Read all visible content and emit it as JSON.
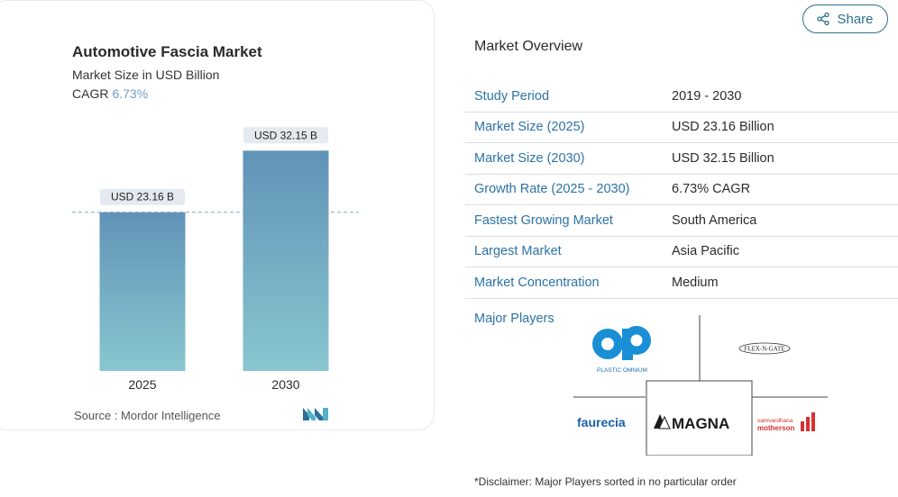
{
  "chart_data": {
    "type": "bar",
    "title": "Automotive Fascia Market",
    "subtitle": "Market Size in USD Billion",
    "cagr_label": "CAGR",
    "cagr_value": "6.73%",
    "categories": [
      "2025",
      "2030"
    ],
    "values": [
      23.16,
      32.15
    ],
    "data_labels": [
      "USD 23.16 B",
      "USD 32.15 B"
    ],
    "ylim": [
      0,
      36
    ],
    "source": "Source :  Mordor Intelligence"
  },
  "share": {
    "label": "Share",
    "icon": "share-icon"
  },
  "overview": {
    "title": "Market Overview",
    "rows": [
      {
        "key": "Study Period",
        "value": "2019 - 2030"
      },
      {
        "key": "Market Size (2025)",
        "value": "USD 23.16 Billion"
      },
      {
        "key": "Market Size (2030)",
        "value": "USD 32.15 Billion"
      },
      {
        "key": "Growth Rate (2025 - 2030)",
        "value": "6.73% CAGR"
      },
      {
        "key": "Fastest Growing Market",
        "value": "South America"
      },
      {
        "key": "Largest Market",
        "value": "Asia Pacific"
      },
      {
        "key": "Market Concentration",
        "value": "Medium"
      }
    ],
    "major_players_label": "Major Players",
    "players": {
      "plastic_omnium": "PLASTIC OMNIUM",
      "flexngate": "FLEX-N-GATE",
      "faurecia": "faurecia",
      "magna": "MAGNA",
      "motherson_line1": "samvardhana",
      "motherson_line2": "motherson"
    },
    "disclaimer": "*Disclaimer: Major Players sorted in no particular order"
  },
  "colors": {
    "bar_top": "#6193b8",
    "bar_bottom": "#89c6cf",
    "link": "#2c73a6",
    "accent": "#2d6f8e"
  }
}
